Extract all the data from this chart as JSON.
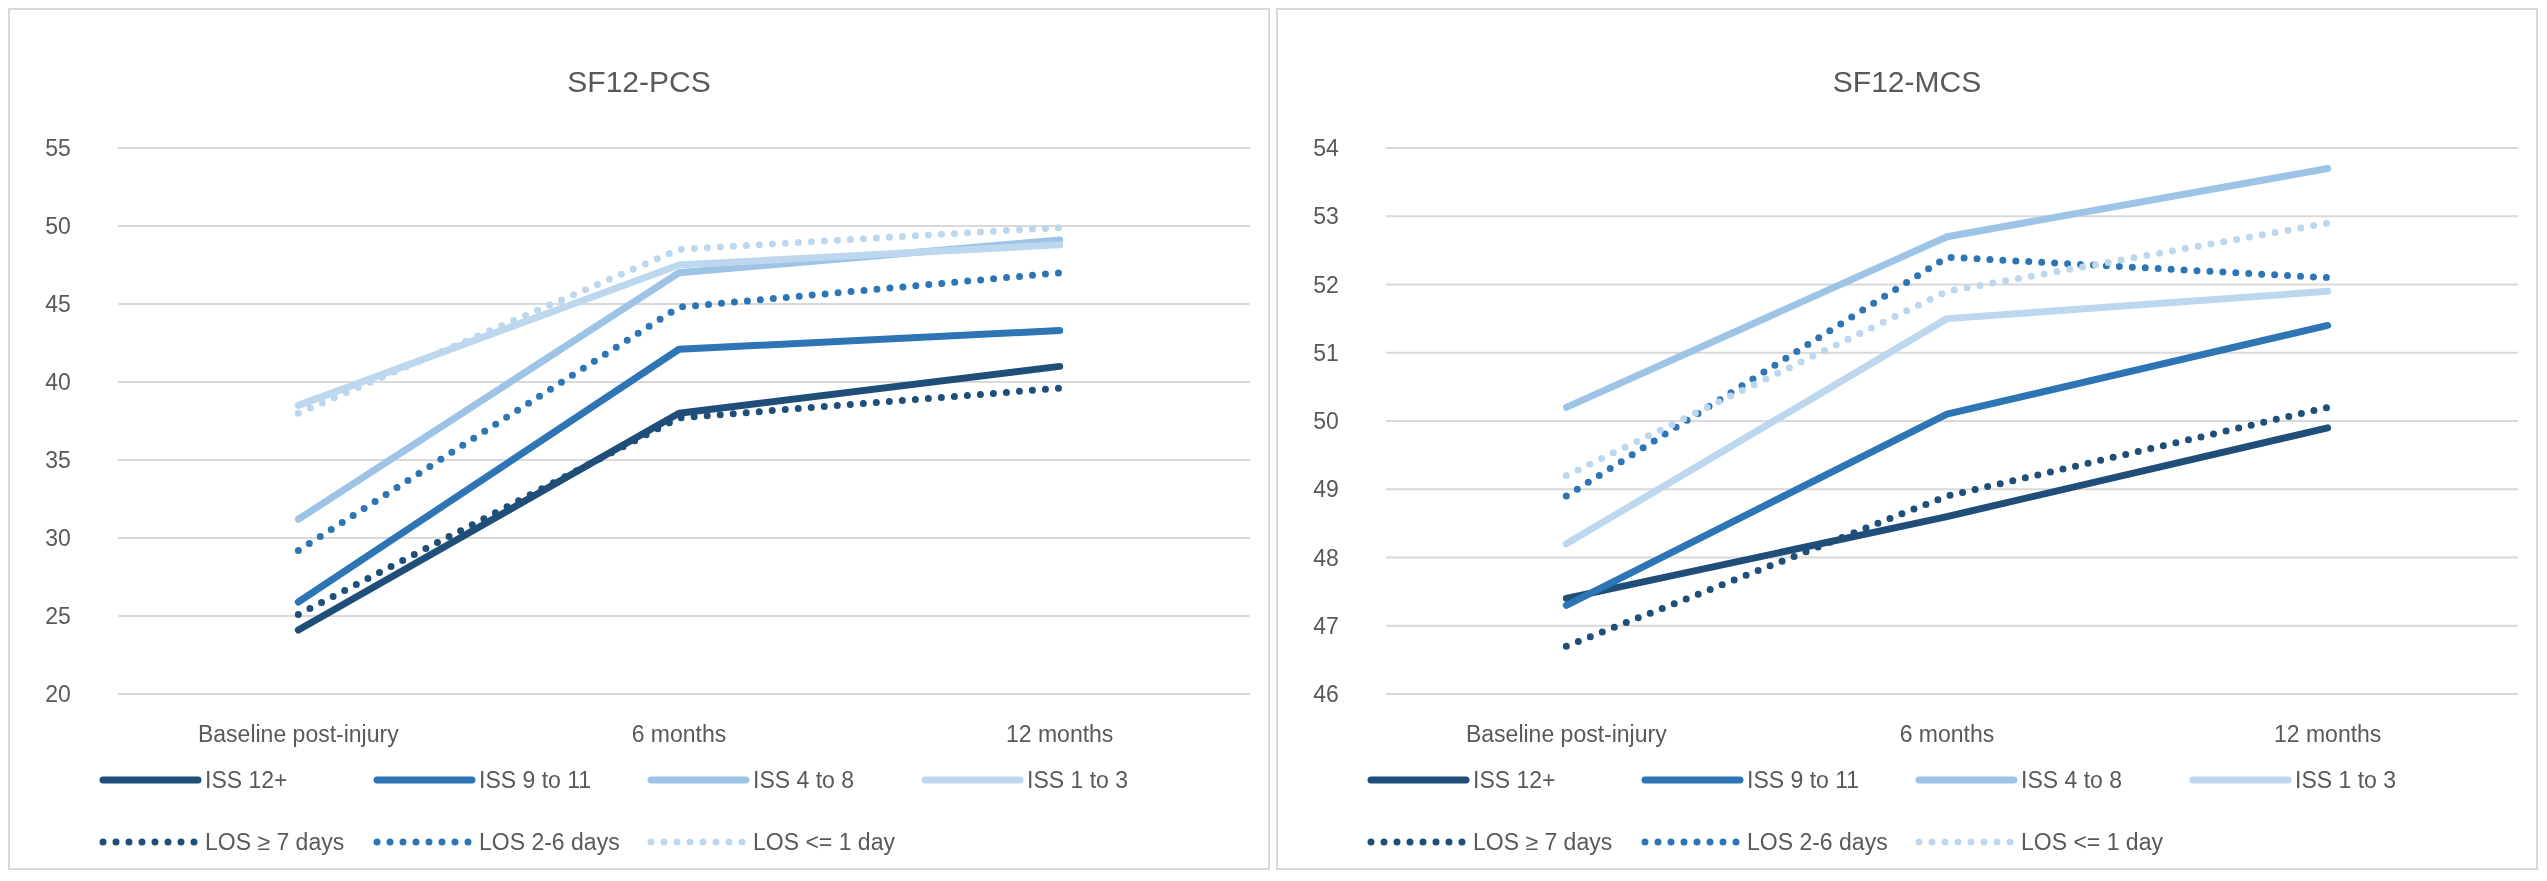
{
  "chart_data": [
    {
      "type": "line",
      "title": "SF12-PCS",
      "categories": [
        "Baseline post-injury",
        "6 months",
        "12 months"
      ],
      "ylim": [
        20,
        55
      ],
      "yticks": [
        20,
        25,
        30,
        35,
        40,
        45,
        50,
        55
      ],
      "grid": "y",
      "legend": "bottom",
      "series": [
        {
          "name": "ISS 12+",
          "color": "#1f4e79",
          "line_style": "solid",
          "values": [
            24.1,
            38,
            41
          ]
        },
        {
          "name": "ISS 9 to 11",
          "color": "#2e75b6",
          "line_style": "solid",
          "values": [
            25.9,
            42.1,
            43.3
          ]
        },
        {
          "name": "ISS 4 to 8",
          "color": "#9dc3e6",
          "line_style": "solid",
          "values": [
            31.2,
            47,
            49.1
          ]
        },
        {
          "name": "ISS 1 to 3",
          "color": "#bdd7ee",
          "line_style": "solid",
          "values": [
            38.5,
            47.5,
            48.8
          ]
        },
        {
          "name": "LOS ≥ 7 days",
          "color": "#1f4e79",
          "line_style": "dotted",
          "values": [
            25.1,
            37.7,
            39.6
          ]
        },
        {
          "name": "LOS 2-6 days",
          "color": "#2e75b6",
          "line_style": "dotted",
          "values": [
            29.2,
            44.8,
            47
          ]
        },
        {
          "name": "LOS <= 1 day",
          "color": "#bdd7ee",
          "line_style": "dotted",
          "values": [
            38,
            48.5,
            49.9
          ]
        }
      ]
    },
    {
      "type": "line",
      "title": "SF12-MCS",
      "categories": [
        "Baseline post-injury",
        "6 months",
        "12 months"
      ],
      "ylim": [
        46,
        54
      ],
      "yticks": [
        46,
        47,
        48,
        49,
        50,
        51,
        52,
        53,
        54
      ],
      "grid": "y",
      "legend": "bottom",
      "series": [
        {
          "name": "ISS 12+",
          "color": "#1f4e79",
          "line_style": "solid",
          "values": [
            47.4,
            48.6,
            49.9
          ]
        },
        {
          "name": "ISS 9 to 11",
          "color": "#2e75b6",
          "line_style": "solid",
          "values": [
            47.3,
            50.1,
            51.4
          ]
        },
        {
          "name": "ISS 4 to 8",
          "color": "#9dc3e6",
          "line_style": "solid",
          "values": [
            50.2,
            52.7,
            53.7
          ]
        },
        {
          "name": "ISS 1 to 3",
          "color": "#bdd7ee",
          "line_style": "solid",
          "values": [
            48.2,
            51.5,
            51.9
          ]
        },
        {
          "name": "LOS ≥ 7 days",
          "color": "#1f4e79",
          "line_style": "dotted",
          "values": [
            46.7,
            48.9,
            50.2
          ]
        },
        {
          "name": "LOS 2-6 days",
          "color": "#2e75b6",
          "line_style": "dotted",
          "values": [
            48.9,
            52.4,
            52.1
          ]
        },
        {
          "name": "LOS <= 1 day",
          "color": "#bdd7ee",
          "line_style": "dotted",
          "values": [
            49.2,
            51.9,
            52.9
          ]
        }
      ]
    }
  ]
}
